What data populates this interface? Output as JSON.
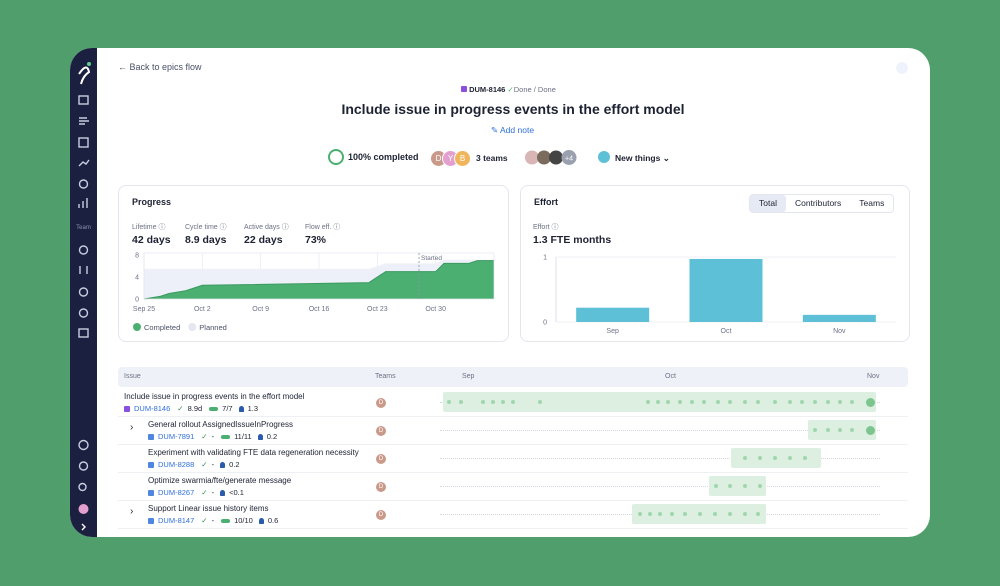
{
  "nav": {
    "back": "Back to epics flow"
  },
  "sidebar": {
    "section": "Team"
  },
  "header": {
    "key": "DUM-8146",
    "status": "Done / Done",
    "title": "Include issue in progress events in the effort model",
    "add_note": "Add note"
  },
  "summary": {
    "completed": "100% completed",
    "team_avatars": [
      "D",
      "Y",
      "B"
    ],
    "teams": "3 teams",
    "more_contributors": "+4",
    "category": "New things"
  },
  "progress_metrics": [
    {
      "label": "Lifetime",
      "value": "42 days"
    },
    {
      "label": "Cycle time",
      "value": "8.9 days"
    },
    {
      "label": "Active days",
      "value": "22 days"
    },
    {
      "label": "Flow eff.",
      "value": "73%"
    }
  ],
  "effort_tabs": [
    "Total",
    "Contributors",
    "Teams"
  ],
  "effort_summary": {
    "label": "Effort",
    "value": "1.3 FTE months"
  },
  "chart_data": [
    {
      "type": "area",
      "title": "Progress",
      "x": [
        "Sep 25",
        "Sep 27",
        "Sep 28",
        "Sep 30",
        "Oct 2",
        "Oct 22",
        "Oct 24",
        "Oct 30",
        "Oct 31",
        "Nov 3",
        "Nov 4",
        "Nov 6"
      ],
      "series": [
        {
          "name": "Completed",
          "color": "#4caf72",
          "values": [
            0,
            0.5,
            1,
            1.5,
            2.5,
            3,
            5,
            5,
            6.5,
            6.5,
            7,
            7
          ]
        },
        {
          "name": "Planned",
          "color": "#edf0f8",
          "values": [
            5.5,
            5.5,
            5.5,
            5.5,
            5.5,
            5.5,
            6.5,
            6.5,
            7.2,
            7.2,
            7.2,
            7.2
          ]
        }
      ],
      "xlim": [
        "Sep 25",
        "Nov 6"
      ],
      "xticks": [
        "Sep 25",
        "Oct 2",
        "Oct 9",
        "Oct 16",
        "Oct 23",
        "Oct 30"
      ],
      "ylim": [
        0,
        8.4
      ],
      "yticks": [
        0,
        4,
        8
      ],
      "annotation": {
        "text": "Started",
        "x": "Oct 28"
      }
    },
    {
      "type": "bar",
      "title": "Effort",
      "categories": [
        "Sep",
        "Oct",
        "Nov"
      ],
      "values": [
        0.22,
        0.97,
        0.11
      ],
      "color": "#5ec0d6",
      "ylim": [
        0,
        1
      ],
      "yticks": [
        0,
        1
      ]
    }
  ],
  "table": {
    "headers": [
      "Issue",
      "Teams",
      "Sep",
      "Oct",
      "Nov"
    ],
    "rows": [
      {
        "title": "Include issue in progress events in the effort model",
        "key": "DUM-8146",
        "duration": "8.9d",
        "tasks": "7/7",
        "fte": "1.3",
        "team": "D",
        "expandable": false
      },
      {
        "title": "General rollout AssignedIssueInProgress",
        "key": "DUM-7891",
        "duration": "-",
        "tasks": "11/11",
        "fte": "0.2",
        "team": "D",
        "expandable": true
      },
      {
        "title": "Experiment with validating FTE data regeneration necessity",
        "key": "DUM-8288",
        "duration": "-",
        "fte": "0.2",
        "team": "D",
        "expandable": false
      },
      {
        "title": "Optimize swarmia/fte/generate message",
        "key": "DUM-8267",
        "duration": "-",
        "fte": "<0.1",
        "team": "D",
        "expandable": false
      },
      {
        "title": "Support Linear issue history items",
        "key": "DUM-8147",
        "duration": "-",
        "tasks": "10/10",
        "fte": "0.6",
        "team": "D",
        "expandable": true
      }
    ]
  }
}
